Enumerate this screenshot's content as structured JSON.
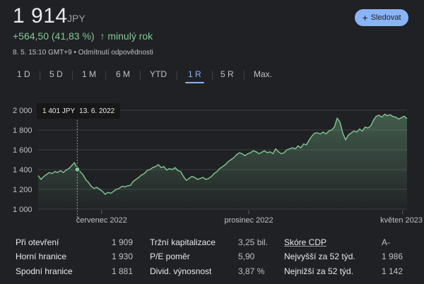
{
  "quote": {
    "price": "1 914",
    "currency": "JPY",
    "change": "+564,50 (41,83 %)",
    "change_arrow": "↑",
    "change_period": "minulý rok",
    "timestamp": "8. 5. 15:10 GMT+9 • Odmítnutí odpovědnosti",
    "follow_label": "Sledovat",
    "follow_icon": "plus-icon",
    "accent_color": "#8ab4f8",
    "positive_color": "#81c995"
  },
  "tabs": [
    {
      "label": "1 D",
      "active": false
    },
    {
      "label": "5 D",
      "active": false
    },
    {
      "label": "1 M",
      "active": false
    },
    {
      "label": "6 M",
      "active": false
    },
    {
      "label": "YTD",
      "active": false
    },
    {
      "label": "1 R",
      "active": true
    },
    {
      "label": "5 R",
      "active": false
    },
    {
      "label": "Max.",
      "active": false
    }
  ],
  "tooltip": {
    "price": "1 401 JPY",
    "date": "13. 6. 2022"
  },
  "stats": [
    {
      "label": "Při otevření",
      "value": "1 909"
    },
    {
      "label": "Horní hranice",
      "value": "1 930"
    },
    {
      "label": "Spodní hranice",
      "value": "1 881"
    },
    {
      "label": "Tržní kapitalizace",
      "value": "3,25 bil."
    },
    {
      "label": "P/E poměr",
      "value": "5,90"
    },
    {
      "label": "Divid. výnosnost",
      "value": "3,87 %"
    },
    {
      "label": "Skóre CDP",
      "value": "A-"
    },
    {
      "label": "Nejvyšší za 52 týd.",
      "value": "1 986"
    },
    {
      "label": "Nejnižší za 52 týd.",
      "value": "1 142"
    }
  ],
  "chart_data": {
    "type": "area",
    "ylim": [
      1000,
      2000
    ],
    "yticks": [
      1000,
      1200,
      1400,
      1600,
      1800,
      2000
    ],
    "ytick_labels": [
      "1 000",
      "1 200",
      "1 400",
      "1 600",
      "1 800",
      "2 000"
    ],
    "xtick_labels": [
      {
        "label": "červenec 2022",
        "pos": 0.172
      },
      {
        "label": "prosinec 2022",
        "pos": 0.571
      },
      {
        "label": "květen 2023",
        "pos": 0.988
      }
    ],
    "hover_index": 14,
    "grid": true,
    "series": [
      {
        "line_color": "#81c995",
        "values": [
          1340,
          1300,
          1330,
          1350,
          1370,
          1360,
          1380,
          1370,
          1390,
          1370,
          1395,
          1410,
          1440,
          1470,
          1401,
          1380,
          1350,
          1300,
          1270,
          1230,
          1210,
          1220,
          1200,
          1180,
          1150,
          1170,
          1160,
          1180,
          1200,
          1210,
          1230,
          1225,
          1235,
          1240,
          1280,
          1300,
          1320,
          1345,
          1360,
          1390,
          1400,
          1420,
          1430,
          1450,
          1420,
          1430,
          1395,
          1410,
          1400,
          1420,
          1390,
          1380,
          1330,
          1290,
          1310,
          1330,
          1320,
          1300,
          1310,
          1320,
          1300,
          1310,
          1330,
          1360,
          1380,
          1410,
          1430,
          1450,
          1480,
          1500,
          1520,
          1550,
          1570,
          1560,
          1540,
          1560,
          1570,
          1590,
          1580,
          1560,
          1575,
          1590,
          1570,
          1580,
          1560,
          1610,
          1580,
          1560,
          1570,
          1600,
          1610,
          1620,
          1610,
          1640,
          1620,
          1660,
          1650,
          1700,
          1740,
          1770,
          1770,
          1760,
          1780,
          1760,
          1790,
          1800,
          1830,
          1920,
          1880,
          1770,
          1700,
          1750,
          1770,
          1790,
          1780,
          1810,
          1790,
          1830,
          1820,
          1840,
          1900,
          1940,
          1950,
          1930,
          1960,
          1945,
          1955,
          1935,
          1930,
          1910,
          1925,
          1940,
          1914
        ]
      }
    ]
  }
}
